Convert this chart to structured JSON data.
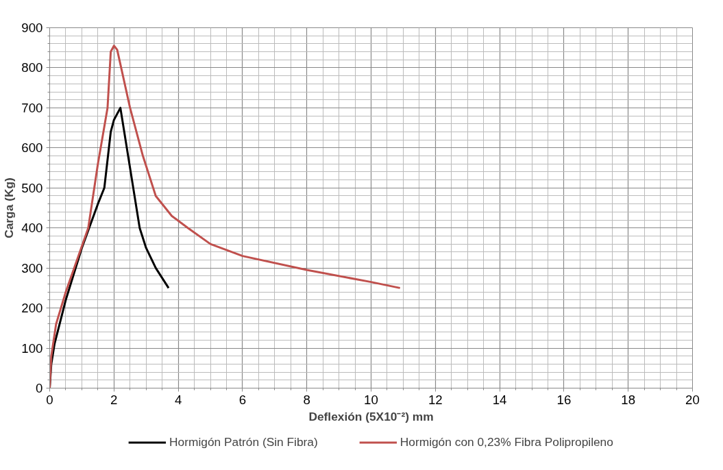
{
  "chart_data": {
    "type": "line",
    "xlabel": "Deflexión (5X10⁻²) mm",
    "ylabel": "Carga (Kg)",
    "xlim": [
      0,
      20
    ],
    "xticks": [
      0,
      2,
      4,
      6,
      8,
      10,
      12,
      14,
      16,
      18,
      20
    ],
    "ylim": [
      0,
      900
    ],
    "yticks": [
      0,
      100,
      200,
      300,
      400,
      500,
      600,
      700,
      800,
      900
    ],
    "grid": true,
    "legend": "bottom",
    "marker": "none",
    "line_style": "solid",
    "series": [
      {
        "name": "Hormigón Patrón (Sin Fibra)",
        "color": "#000000",
        "x": [
          0,
          0.05,
          0.15,
          0.5,
          1,
          1.5,
          1.7,
          1.9,
          2.0,
          2.2,
          2.5,
          2.8,
          3.0,
          3.3,
          3.7
        ],
        "values": [
          0,
          60,
          110,
          220,
          350,
          460,
          500,
          640,
          670,
          700,
          550,
          400,
          350,
          300,
          250
        ]
      },
      {
        "name": "Hormigón con 0,23% Fibra Polipropileno",
        "color": "#c0504d",
        "x": [
          0,
          0.05,
          0.2,
          0.5,
          1.2,
          1.5,
          1.8,
          1.9,
          2.0,
          2.1,
          2.5,
          2.9,
          3.3,
          3.8,
          4.3,
          5,
          6,
          8,
          10,
          10.9
        ],
        "values": [
          0,
          80,
          160,
          240,
          400,
          560,
          700,
          840,
          855,
          845,
          700,
          580,
          480,
          430,
          400,
          360,
          330,
          295,
          265,
          250
        ]
      }
    ]
  }
}
